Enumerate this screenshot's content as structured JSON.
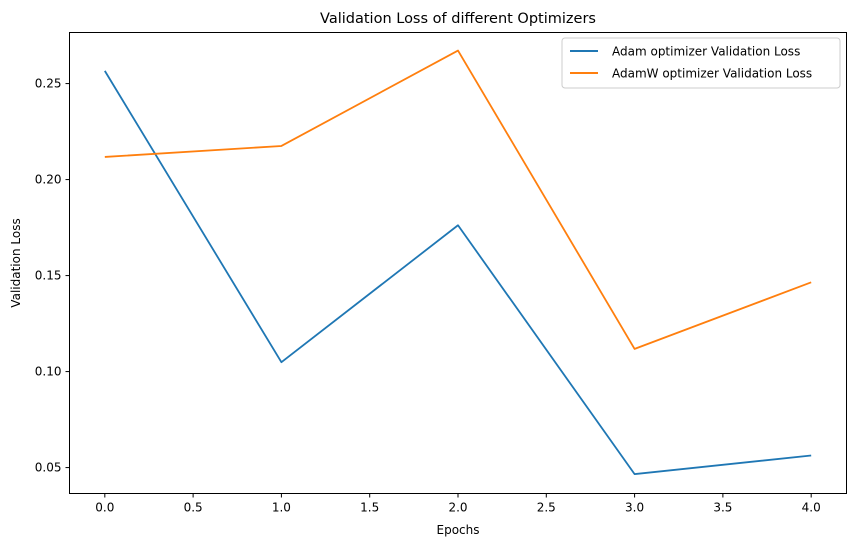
{
  "chart_data": {
    "type": "line",
    "title": "Validation Loss of different Optimizers",
    "xlabel": "Epochs",
    "ylabel": "Validation Loss",
    "x": [
      0,
      1,
      2,
      3,
      4
    ],
    "xlim": [
      -0.2,
      4.2
    ],
    "ylim": [
      0.0365,
      0.2766
    ],
    "xticks": [
      0.0,
      0.5,
      1.0,
      1.5,
      2.0,
      2.5,
      3.0,
      3.5,
      4.0
    ],
    "xtick_labels": [
      "0.0",
      "0.5",
      "1.0",
      "1.5",
      "2.0",
      "2.5",
      "3.0",
      "3.5",
      "4.0"
    ],
    "yticks": [
      0.05,
      0.1,
      0.15,
      0.2,
      0.25
    ],
    "ytick_labels": [
      "0.05",
      "0.10",
      "0.15",
      "0.20",
      "0.25"
    ],
    "grid": false,
    "legend_position": "top-right",
    "series": [
      {
        "name": "Adam optimizer Validation Loss",
        "color": "#1f77b4",
        "values": [
          0.2566,
          0.1049,
          0.1762,
          0.0466,
          0.0563
        ]
      },
      {
        "name": "AdamW optimizer Validation Loss",
        "color": "#ff7f0e",
        "values": [
          0.2118,
          0.2175,
          0.2672,
          0.1118,
          0.1465
        ]
      }
    ]
  }
}
